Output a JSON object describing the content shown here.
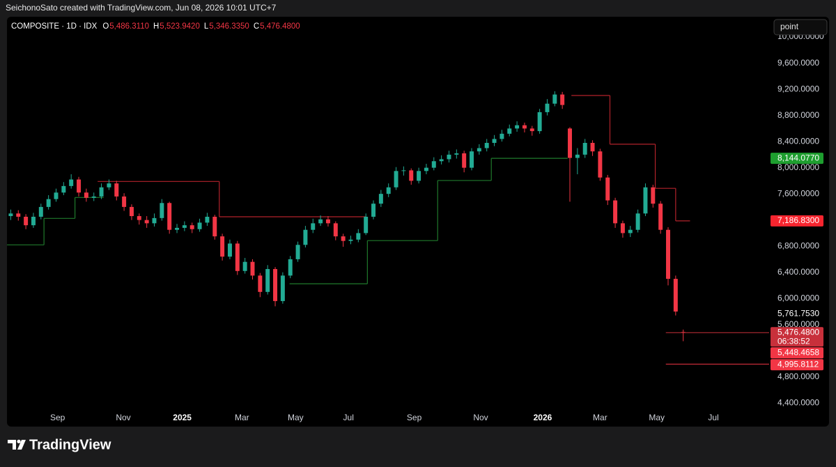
{
  "header": {
    "attribution": "SeichonoSato created with TradingView.com, Jun 08, 2026 10:01 UTC+7"
  },
  "toolbar": {
    "input": "point"
  },
  "footer": {
    "brand": "TradingView"
  },
  "chart_data": {
    "type": "candlestick",
    "symbol": "COMPOSITE · 1D · IDX",
    "legend": [
      {
        "label": "O",
        "value": "5,486.3110"
      },
      {
        "label": "H",
        "value": "5,523.9420"
      },
      {
        "label": "L",
        "value": "5,346.3350"
      },
      {
        "label": "C",
        "value": "5,476.4800"
      }
    ],
    "up_color": "#22ab94",
    "down_color": "#f23645",
    "open": [
      7260,
      7300,
      7250,
      7120,
      7250,
      7400,
      7520,
      7620,
      7720,
      7820,
      7620,
      7540,
      7560,
      7700,
      7760,
      7560,
      7400,
      7260,
      7200,
      7150,
      7230,
      7460,
      7050,
      7080,
      7120,
      7060,
      7160,
      7250,
      6950,
      6640,
      6840,
      6420,
      6560,
      6350,
      6100,
      6450,
      5960,
      6350,
      6600,
      6820,
      7050,
      7150,
      7210,
      7150,
      6950,
      6880,
      6900,
      7000,
      7250,
      7450,
      7600,
      7700,
      7950,
      7960,
      7800,
      7950,
      8000,
      8100,
      8130,
      8200,
      8220,
      8000,
      8250,
      8300,
      8380,
      8440,
      8520,
      8600,
      8650,
      8600,
      8560,
      8850,
      8980,
      9120,
      8600,
      8150,
      8200,
      8380,
      8250,
      7850,
      7500,
      7150,
      7000,
      7050,
      7300,
      7700,
      7450,
      7050,
      6300,
      5486.311
    ],
    "high": [
      7360,
      7350,
      7290,
      7310,
      7450,
      7580,
      7680,
      7780,
      7900,
      7860,
      7680,
      7620,
      7760,
      7820,
      7800,
      7610,
      7440,
      7300,
      7260,
      7300,
      7520,
      7480,
      7140,
      7180,
      7160,
      7220,
      7310,
      7280,
      6990,
      6900,
      6880,
      6620,
      6600,
      6390,
      6510,
      6480,
      6400,
      6650,
      6870,
      7110,
      7220,
      7270,
      7260,
      7180,
      6990,
      6960,
      7060,
      7300,
      7500,
      7660,
      7760,
      8010,
      8020,
      7990,
      8000,
      8060,
      8160,
      8190,
      8260,
      8280,
      8260,
      8300,
      8360,
      8440,
      8500,
      8580,
      8660,
      8710,
      8690,
      8640,
      8900,
      9050,
      9170,
      9160,
      8620,
      8300,
      8440,
      8420,
      8290,
      7890,
      7540,
      7190,
      7110,
      7360,
      7760,
      7740,
      7490,
      7090,
      6350,
      5523.942
    ],
    "low": [
      7200,
      7190,
      7060,
      7080,
      7210,
      7360,
      7480,
      7580,
      7680,
      7560,
      7480,
      7490,
      7520,
      7660,
      7500,
      7340,
      7200,
      7130,
      7080,
      7100,
      7190,
      6990,
      7000,
      7030,
      7000,
      7020,
      7110,
      6900,
      6580,
      6600,
      6360,
      6380,
      6290,
      6020,
      6060,
      5880,
      5920,
      6310,
      6560,
      6780,
      7000,
      7110,
      7100,
      6890,
      6790,
      6830,
      6860,
      6970,
      7210,
      7400,
      7550,
      7660,
      7880,
      7740,
      7760,
      7900,
      7960,
      8050,
      8080,
      8140,
      7930,
      7960,
      8200,
      8250,
      8330,
      8400,
      8480,
      8550,
      8540,
      8490,
      8520,
      8800,
      8940,
      8900,
      7480,
      7900,
      8150,
      8180,
      7800,
      7430,
      7080,
      6930,
      6940,
      7010,
      7260,
      7390,
      6990,
      6200,
      5740,
      5346.335
    ],
    "close": [
      7300,
      7250,
      7120,
      7250,
      7400,
      7520,
      7620,
      7720,
      7820,
      7620,
      7540,
      7560,
      7700,
      7760,
      7560,
      7400,
      7260,
      7200,
      7150,
      7230,
      7460,
      7050,
      7080,
      7120,
      7060,
      7160,
      7250,
      6950,
      6640,
      6840,
      6420,
      6560,
      6350,
      6100,
      6450,
      5960,
      6350,
      6600,
      6820,
      7050,
      7150,
      7210,
      7150,
      6950,
      6880,
      6900,
      7000,
      7250,
      7450,
      7600,
      7700,
      7950,
      7960,
      7800,
      7950,
      8000,
      8100,
      8130,
      8200,
      8220,
      8000,
      8250,
      8300,
      8380,
      8440,
      8520,
      8600,
      8650,
      8600,
      8560,
      8850,
      8980,
      9120,
      8960,
      8150,
      8200,
      8380,
      8250,
      7850,
      7500,
      7150,
      7000,
      7050,
      7300,
      7700,
      7450,
      7050,
      6300,
      5800,
      5476.48
    ],
    "stop_lines": [
      {
        "color": "#b2222b",
        "steps": [
          {
            "from": 11.5,
            "to": 27.6,
            "value": 7790
          },
          {
            "from": 27.6,
            "to": 47.0,
            "value": 7250
          },
          {
            "from": 74.2,
            "to": 79.3,
            "value": 9105
          },
          {
            "from": 79.3,
            "to": 85.3,
            "value": 8360
          },
          {
            "from": 85.3,
            "to": 88.0,
            "value": 7685
          },
          {
            "from": 88.0,
            "to": 89.9,
            "value": 7186.83
          }
        ]
      },
      {
        "color": "#1f7a2c",
        "steps": [
          {
            "from": -0.5,
            "to": 4.4,
            "value": 6820
          },
          {
            "from": 4.4,
            "to": 8.5,
            "value": 7225
          },
          {
            "from": 8.5,
            "to": 12.3,
            "value": 7545
          },
          {
            "from": 36.9,
            "to": 47.2,
            "value": 6225
          },
          {
            "from": 47.2,
            "to": 56.5,
            "value": 6885
          },
          {
            "from": 56.5,
            "to": 63.6,
            "value": 7805
          },
          {
            "from": 63.6,
            "to": 73.7,
            "value": 8144.077
          }
        ]
      }
    ],
    "price_labels": [
      {
        "value": 8144.077,
        "label": "8,144.0770",
        "color": "#1e9e2f"
      },
      {
        "value": 7186.83,
        "label": "7,186.8300",
        "color": "#f7252f"
      },
      {
        "value": 5761.753,
        "label": "5,761.7530"
      },
      {
        "value": 5476.48,
        "label": "5,476.4800",
        "countdown": "06:38:52",
        "color": "#c8303b",
        "line": true
      },
      {
        "value": 5448.4658,
        "label": "5,448.4658",
        "color": "#f23645"
      },
      {
        "value": 4995.8112,
        "label": "4,995.8112",
        "color": "#f23645",
        "line": true
      }
    ],
    "xlim": [
      -0.5,
      100
    ],
    "xticks": [
      {
        "value": 6.2,
        "label": "Sep"
      },
      {
        "value": 14.9,
        "label": "Nov"
      },
      {
        "value": 22.7,
        "label": "2025"
      },
      {
        "value": 30.6,
        "label": "Mar"
      },
      {
        "value": 37.7,
        "label": "May"
      },
      {
        "value": 44.7,
        "label": "Jul"
      },
      {
        "value": 53.4,
        "label": "Sep"
      },
      {
        "value": 62.2,
        "label": "Nov"
      },
      {
        "value": 70.4,
        "label": "2026"
      },
      {
        "value": 78.0,
        "label": "Mar"
      },
      {
        "value": 85.5,
        "label": "May"
      },
      {
        "value": 93.0,
        "label": "Jul"
      }
    ],
    "ylim": [
      4040,
      10310
    ],
    "yticks": [
      {
        "value": 10000,
        "label": "10,000.0000"
      },
      {
        "value": 9600,
        "label": "9,600.0000"
      },
      {
        "value": 9200,
        "label": "9,200.0000"
      },
      {
        "value": 8800,
        "label": "8,800.0000"
      },
      {
        "value": 8400,
        "label": "8,400.0000"
      },
      {
        "value": 8000,
        "label": "8,000.0000"
      },
      {
        "value": 7600,
        "label": "7,600.0000"
      },
      {
        "value": 6800,
        "label": "6,800.0000"
      },
      {
        "value": 6400,
        "label": "6,400.0000"
      },
      {
        "value": 6000,
        "label": "6,000.0000"
      },
      {
        "value": 5600,
        "label": "5,600.0000"
      },
      {
        "value": 4800,
        "label": "4,800.0000"
      },
      {
        "value": 4400,
        "label": "4,400.0000"
      }
    ],
    "grid": false
  }
}
